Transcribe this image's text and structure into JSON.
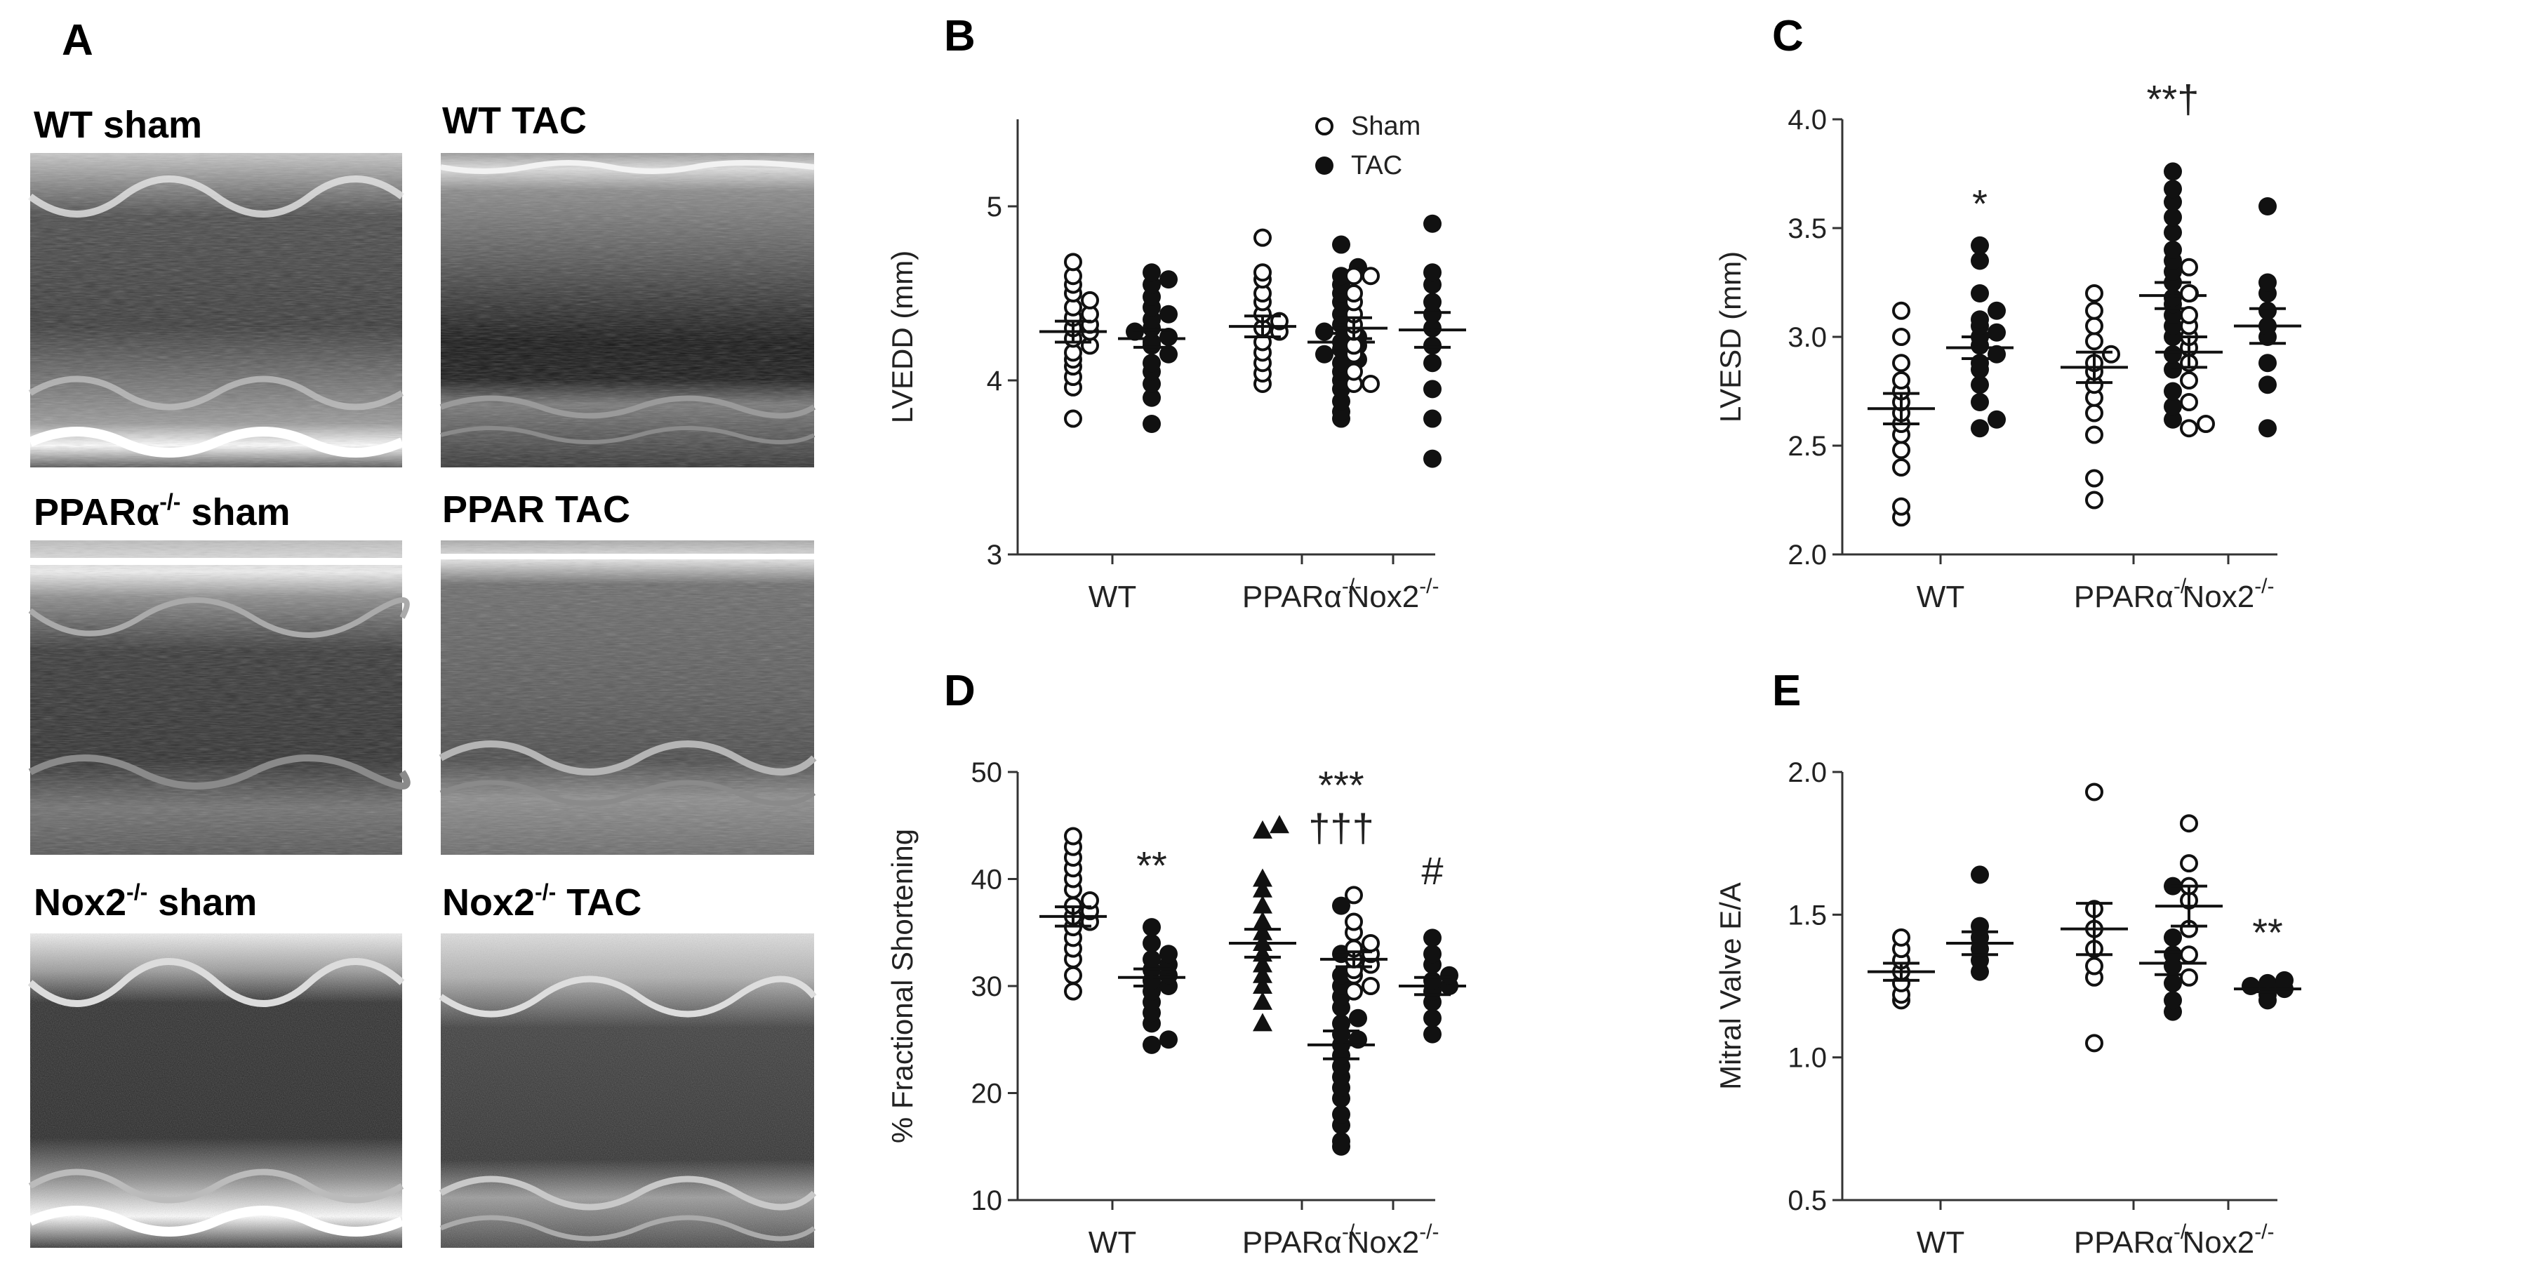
{
  "panel_a": {
    "label": "A",
    "images": [
      {
        "name": "wt-sham",
        "title": "WT sham",
        "parts": [
          "WT sham"
        ]
      },
      {
        "name": "wt-tac",
        "title": "WT TAC",
        "parts": [
          "WT TAC"
        ]
      },
      {
        "name": "ppar-sham",
        "title": "PPARα-/- sham",
        "parts": [
          "PPARα",
          "-/-",
          " sham"
        ]
      },
      {
        "name": "ppar-tac",
        "title": "PPAR TAC",
        "parts": [
          "PPAR TAC"
        ]
      },
      {
        "name": "nox2-sham",
        "title": "Nox2-/- sham",
        "parts": [
          "Nox2",
          "-/-",
          " sham"
        ]
      },
      {
        "name": "nox2-tac",
        "title": "Nox2-/- TAC",
        "parts": [
          "Nox2",
          "-/-",
          " TAC"
        ]
      }
    ]
  },
  "legend": {
    "sham": "Sham",
    "tac": "TAC"
  },
  "chart_data": [
    {
      "panel": "B",
      "type": "scatter",
      "ylabel": "LVEDD (mm)",
      "ylim": [
        3,
        5.5
      ],
      "yticks": [
        3,
        4,
        5
      ],
      "tick_decimals": 0,
      "groups": [
        {
          "name": "WT",
          "label_parts": [
            "WT"
          ],
          "sham": {
            "values": [
              3.78,
              3.96,
              4.02,
              4.08,
              4.12,
              4.16,
              4.2,
              4.24,
              4.28,
              4.3,
              4.32,
              4.36,
              4.38,
              4.42,
              4.46,
              4.5,
              4.55,
              4.6,
              4.68
            ],
            "mean": 4.28,
            "sem": 0.06
          },
          "tac": {
            "values": [
              3.75,
              3.9,
              3.98,
              4.05,
              4.1,
              4.15,
              4.2,
              4.22,
              4.25,
              4.28,
              4.3,
              4.35,
              4.38,
              4.42,
              4.48,
              4.55,
              4.58,
              4.62
            ],
            "mean": 4.24,
            "sem": 0.05
          }
        },
        {
          "name": "PPARα-/-",
          "label_parts": [
            "PPARα",
            "-/-"
          ],
          "sham": {
            "values": [
              3.98,
              4.04,
              4.1,
              4.16,
              4.22,
              4.28,
              4.3,
              4.34,
              4.38,
              4.45,
              4.5,
              4.58,
              4.62,
              4.82
            ],
            "mean": 4.31,
            "sem": 0.06
          },
          "tac": {
            "values": [
              3.78,
              3.82,
              3.88,
              3.95,
              4.0,
              4.05,
              4.1,
              4.12,
              4.15,
              4.18,
              4.2,
              4.22,
              4.25,
              4.28,
              4.32,
              4.38,
              4.45,
              4.5,
              4.55,
              4.6,
              4.65,
              4.78
            ],
            "mean": 4.22,
            "sem": 0.05
          }
        },
        {
          "name": "Nox2-/-",
          "label_parts": [
            "Nox2",
            "-/-"
          ],
          "sham": {
            "values": [
              3.98,
              3.98,
              4.05,
              4.15,
              4.2,
              4.28,
              4.32,
              4.38,
              4.45,
              4.5,
              4.6,
              4.6
            ],
            "mean": 4.3,
            "sem": 0.06
          },
          "tac": {
            "values": [
              3.55,
              3.78,
              3.95,
              4.1,
              4.2,
              4.3,
              4.38,
              4.45,
              4.55,
              4.62,
              4.9
            ],
            "mean": 4.29,
            "sem": 0.1
          }
        }
      ],
      "annotations": []
    },
    {
      "panel": "C",
      "type": "scatter",
      "ylabel": "LVESD (mm)",
      "ylim": [
        2.0,
        4.0
      ],
      "yticks": [
        2.0,
        2.5,
        3.0,
        3.5,
        4.0
      ],
      "tick_decimals": 1,
      "groups": [
        {
          "name": "WT",
          "label_parts": [
            "WT"
          ],
          "sham": {
            "values": [
              2.17,
              2.22,
              2.4,
              2.48,
              2.55,
              2.6,
              2.65,
              2.7,
              2.75,
              2.8,
              2.88,
              3.0,
              3.12
            ],
            "mean": 2.67,
            "sem": 0.07
          },
          "tac": {
            "values": [
              2.58,
              2.62,
              2.7,
              2.78,
              2.85,
              2.88,
              2.92,
              2.96,
              3.0,
              3.02,
              3.05,
              3.08,
              3.12,
              3.2,
              3.35,
              3.42
            ],
            "mean": 2.95,
            "sem": 0.05
          }
        },
        {
          "name": "PPARα-/-",
          "label_parts": [
            "PPARα",
            "-/-"
          ],
          "sham": {
            "values": [
              2.25,
              2.35,
              2.55,
              2.65,
              2.72,
              2.78,
              2.84,
              2.88,
              2.92,
              2.98,
              3.05,
              3.12,
              3.2
            ],
            "mean": 2.86,
            "sem": 0.07
          },
          "tac": {
            "values": [
              2.62,
              2.68,
              2.75,
              2.85,
              2.92,
              3.0,
              3.05,
              3.1,
              3.15,
              3.18,
              3.2,
              3.25,
              3.3,
              3.35,
              3.4,
              3.48,
              3.55,
              3.62,
              3.68,
              3.76
            ],
            "mean": 3.19,
            "sem": 0.06
          }
        },
        {
          "name": "Nox2-/-",
          "label_parts": [
            "Nox2",
            "-/-"
          ],
          "sham": {
            "values": [
              2.58,
              2.6,
              2.7,
              2.8,
              2.88,
              2.95,
              3.0,
              3.05,
              3.1,
              3.2,
              3.32
            ],
            "mean": 2.93,
            "sem": 0.07
          },
          "tac": {
            "values": [
              2.58,
              2.78,
              2.88,
              3.0,
              3.05,
              3.12,
              3.2,
              3.25,
              3.6
            ],
            "mean": 3.05,
            "sem": 0.08
          }
        }
      ],
      "annotations": [
        {
          "group": 0,
          "series": "tac",
          "text": "*",
          "y": 3.55
        },
        {
          "group": 1,
          "series": "tac",
          "text": "**†",
          "y": 4.03
        }
      ]
    },
    {
      "panel": "D",
      "type": "scatter",
      "ylabel": "% Fractional Shortening",
      "ylim": [
        10,
        50
      ],
      "yticks": [
        10,
        20,
        30,
        40,
        50
      ],
      "tick_decimals": 0,
      "groups": [
        {
          "name": "WT",
          "label_parts": [
            "WT"
          ],
          "sham": {
            "values": [
              29.5,
              31,
              32.5,
              33.5,
              34.5,
              35.5,
              36,
              36.5,
              37,
              37.5,
              38,
              39,
              40,
              41,
              42,
              43,
              44
            ],
            "mean": 36.5,
            "sem": 0.9
          },
          "tac": {
            "values": [
              24.5,
              25,
              26.5,
              27.5,
              28.5,
              29.5,
              30,
              30.5,
              31,
              31.5,
              32,
              32.5,
              33,
              34,
              35.5
            ],
            "mean": 30.8,
            "sem": 0.8
          }
        },
        {
          "name": "PPARα-/-",
          "label_parts": [
            "PPARα",
            "-/-"
          ],
          "sham_marker": "triangle",
          "sham": {
            "values": [
              26.5,
              28.5,
              30,
              31,
              32,
              33,
              34,
              35,
              36,
              37.5,
              39,
              40,
              44.5,
              45
            ],
            "mean": 34,
            "sem": 1.3
          },
          "tac": {
            "values": [
              15,
              15.5,
              17,
              18,
              19.5,
              20.5,
              21.5,
              22.5,
              23.5,
              24.5,
              25,
              25.5,
              26.5,
              27,
              28,
              29,
              30,
              31,
              33,
              37.5
            ],
            "mean": 24.5,
            "sem": 1.3
          }
        },
        {
          "name": "Nox2-/-",
          "label_parts": [
            "Nox2",
            "-/-"
          ],
          "sham": {
            "values": [
              29.5,
              30,
              31,
              31.5,
              32,
              32.5,
              33,
              33.5,
              34,
              35,
              36,
              38.5
            ],
            "mean": 32.5,
            "sem": 0.7
          },
          "tac": {
            "values": [
              25.5,
              27,
              28.5,
              29.5,
              30,
              30.5,
              31,
              32,
              33,
              34.5
            ],
            "mean": 30,
            "sem": 0.8
          }
        }
      ],
      "annotations": [
        {
          "group": 0,
          "series": "tac",
          "text": "**",
          "y": 40
        },
        {
          "group": 1,
          "series": "tac",
          "text": "***",
          "y": 47.5
        },
        {
          "group": 1,
          "series": "tac",
          "text": "†††",
          "y": 43.5
        },
        {
          "group": 2,
          "series": "tac",
          "text": "#",
          "y": 39.5
        }
      ]
    },
    {
      "panel": "E",
      "type": "scatter",
      "ylabel": "Mitral Valve E/A",
      "ylim": [
        0.5,
        2.0
      ],
      "yticks": [
        0.5,
        1.0,
        1.5,
        2.0
      ],
      "tick_decimals": 1,
      "groups": [
        {
          "name": "WT",
          "label_parts": [
            "WT"
          ],
          "sham": {
            "values": [
              1.2,
              1.22,
              1.26,
              1.3,
              1.34,
              1.38,
              1.42
            ],
            "mean": 1.3,
            "sem": 0.03
          },
          "tac": {
            "values": [
              1.3,
              1.34,
              1.38,
              1.42,
              1.46,
              1.64
            ],
            "mean": 1.4,
            "sem": 0.04
          }
        },
        {
          "name": "PPARα-/-",
          "label_parts": [
            "PPARα",
            "-/-"
          ],
          "sham": {
            "values": [
              1.05,
              1.28,
              1.32,
              1.38,
              1.45,
              1.52,
              1.93
            ],
            "mean": 1.45,
            "sem": 0.09
          },
          "tac": {
            "values": [
              1.16,
              1.2,
              1.26,
              1.32,
              1.36,
              1.42,
              1.6
            ],
            "mean": 1.33,
            "sem": 0.04
          }
        },
        {
          "name": "Nox2-/-",
          "label_parts": [
            "Nox2",
            "-/-"
          ],
          "sham": {
            "values": [
              1.28,
              1.36,
              1.45,
              1.55,
              1.6,
              1.68,
              1.82
            ],
            "mean": 1.53,
            "sem": 0.07
          },
          "tac": {
            "values": [
              1.2,
              1.22,
              1.24,
              1.25,
              1.26,
              1.27
            ],
            "mean": 1.24,
            "sem": 0.01
          }
        }
      ],
      "annotations": [
        {
          "group": 2,
          "series": "tac",
          "text": "**",
          "y": 1.39
        }
      ]
    }
  ]
}
